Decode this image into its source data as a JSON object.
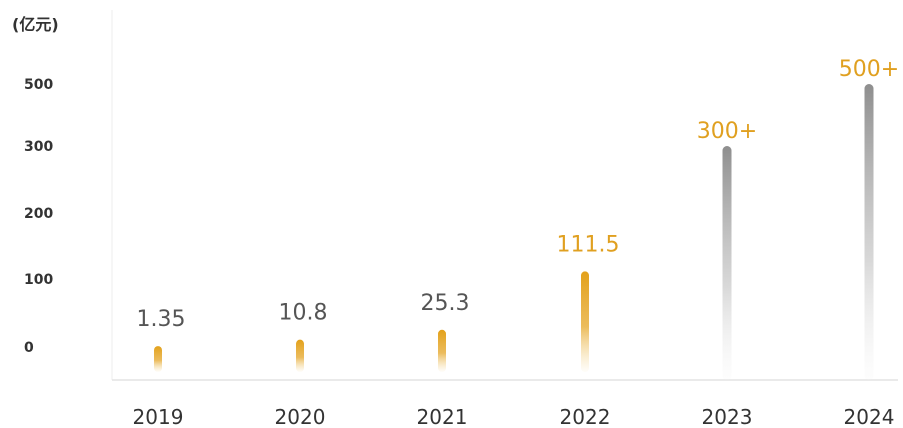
{
  "chart_data": {
    "type": "bar",
    "unit_label": "(亿元)",
    "categories": [
      "2019",
      "2020",
      "2021",
      "2022",
      "2023",
      "2024"
    ],
    "values": [
      1.35,
      10.8,
      25.3,
      111.5,
      300,
      500
    ],
    "data_labels": [
      "1.35",
      "10.8",
      "25.3",
      "111.5",
      "300+",
      "500+"
    ],
    "y_ticks": [
      "0",
      "100",
      "200",
      "300",
      "500"
    ],
    "y_tick_values": [
      0,
      100,
      200,
      300,
      500
    ],
    "grid": false,
    "colors": {
      "gold_bar": "#E0A020",
      "gray_bar": "#9E9E9E",
      "gold_label": "#E0A020",
      "gray_label": "#555555",
      "axis": "#E4E4E4",
      "text": "#333333"
    },
    "bar_style": [
      "gold",
      "gold",
      "gold",
      "gold",
      "gray",
      "gray"
    ]
  }
}
